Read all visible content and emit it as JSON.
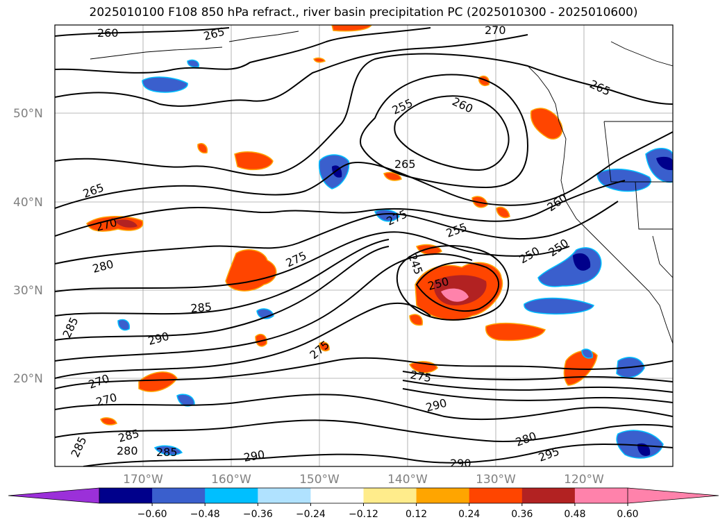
{
  "title": "2025010100 F108 850 hPa refract., river basin precipitation PC (2025010300 - 2025010600)",
  "map": {
    "lat_labels": [
      "50°N",
      "40°N",
      "30°N",
      "20°N"
    ],
    "lon_labels": [
      "170°W",
      "160°W",
      "150°W",
      "140°W",
      "130°W",
      "120°W"
    ],
    "contour_labels": [
      "260",
      "265",
      "270",
      "265",
      "255",
      "260",
      "265",
      "265",
      "270",
      "275",
      "255",
      "260",
      "250",
      "280",
      "275",
      "245",
      "250",
      "250",
      "285",
      "285",
      "290",
      "275",
      "270",
      "270",
      "275",
      "290",
      "280",
      "285",
      "280",
      "285",
      "285",
      "290",
      "290",
      "295"
    ]
  },
  "colorbar": {
    "labels": [
      "−0.60",
      "−0.48",
      "−0.36",
      "−0.24",
      "−0.12",
      "0.12",
      "0.24",
      "0.36",
      "0.48",
      "0.60"
    ],
    "colors": {
      "low_extend": "#9b30d9",
      "bins": [
        "#00008b",
        "#3a5fcd",
        "#00bfff",
        "#b0e2ff",
        "#ffffff",
        "#ffec8b",
        "#ffa500",
        "#ff4500",
        "#b22222",
        "#ff82ab"
      ]
    }
  }
}
